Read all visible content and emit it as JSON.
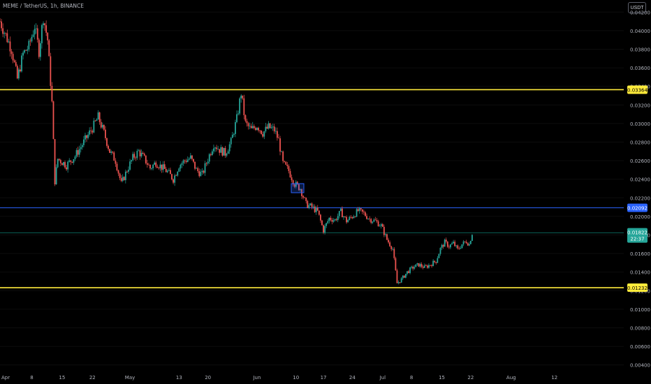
{
  "header": {
    "symbol_line": "MEME / TetherUS, 1h, BINANCE",
    "currency_button": "USDT"
  },
  "colors": {
    "background": "#000000",
    "up_candle": "#26a69a",
    "down_candle": "#ef5350",
    "resistance_line": "#ffeb3b",
    "blue_line": "#2962ff",
    "current_price_line": "#0b6b5f",
    "axis_text": "#b2b5be"
  },
  "chart_data": {
    "type": "candlestick",
    "ylim": [
      0.0033,
      0.0433
    ],
    "y_ticks": [
      "0.04200",
      "0.04000",
      "0.03800",
      "0.03600",
      "0.03400",
      "0.03200",
      "0.03000",
      "0.02800",
      "0.02600",
      "0.02400",
      "0.02200",
      "0.02000",
      "0.01800",
      "0.01600",
      "0.01400",
      "0.01200",
      "0.01000",
      "0.00800",
      "0.00600",
      "0.00400"
    ],
    "x_ticks": [
      "Apr",
      "8",
      "15",
      "22",
      "May",
      "13",
      "20",
      "Jun",
      "10",
      "17",
      "24",
      "Jul",
      "8",
      "15",
      "22",
      "Aug",
      "12"
    ],
    "horizontal_lines": [
      {
        "price": 0.03364,
        "label": "0.03364",
        "color": "#ffeb3b",
        "style": "solid"
      },
      {
        "price": 0.02092,
        "label": "0.02092",
        "color": "#2962ff",
        "style": "solid"
      },
      {
        "price": 0.01232,
        "label": "0.01232",
        "color": "#ffeb3b",
        "style": "solid"
      }
    ],
    "current_price": {
      "price": 0.01822,
      "label": "0.01822",
      "countdown": "22:37"
    },
    "price_path": [
      [
        0.0,
        0.041
      ],
      [
        2.0,
        0.0395
      ],
      [
        4.0,
        0.038
      ],
      [
        6.0,
        0.0348
      ],
      [
        8.0,
        0.0375
      ],
      [
        10.0,
        0.0383
      ],
      [
        12.0,
        0.0405
      ],
      [
        13.5,
        0.0378
      ],
      [
        15.0,
        0.0415
      ],
      [
        16.5,
        0.039
      ],
      [
        18.0,
        0.0322
      ],
      [
        19.0,
        0.0238
      ],
      [
        20.0,
        0.0262
      ],
      [
        23.0,
        0.0255
      ],
      [
        26.0,
        0.0265
      ],
      [
        29.0,
        0.028
      ],
      [
        32.0,
        0.0295
      ],
      [
        34.0,
        0.0307
      ],
      [
        36.0,
        0.029
      ],
      [
        38.0,
        0.027
      ],
      [
        40.0,
        0.026
      ],
      [
        42.0,
        0.0235
      ],
      [
        44.0,
        0.025
      ],
      [
        46.0,
        0.0263
      ],
      [
        48.0,
        0.027
      ],
      [
        50.0,
        0.0262
      ],
      [
        52.0,
        0.0252
      ],
      [
        54.0,
        0.0258
      ],
      [
        56.0,
        0.0253
      ],
      [
        58.0,
        0.0248
      ],
      [
        60.0,
        0.024
      ],
      [
        62.0,
        0.0255
      ],
      [
        64.0,
        0.026
      ],
      [
        66.0,
        0.0263
      ],
      [
        68.0,
        0.025
      ],
      [
        70.0,
        0.0245
      ],
      [
        72.0,
        0.0262
      ],
      [
        74.0,
        0.0278
      ],
      [
        76.0,
        0.0272
      ],
      [
        78.0,
        0.0268
      ],
      [
        80.0,
        0.028
      ],
      [
        82.0,
        0.0305
      ],
      [
        83.5,
        0.0333
      ],
      [
        85.0,
        0.03
      ],
      [
        87.0,
        0.0293
      ],
      [
        89.0,
        0.0298
      ],
      [
        91.0,
        0.029
      ],
      [
        93.0,
        0.0296
      ],
      [
        95.0,
        0.0293
      ],
      [
        96.5,
        0.0282
      ],
      [
        98.0,
        0.0257
      ],
      [
        100.0,
        0.0249
      ],
      [
        102.0,
        0.0235
      ],
      [
        104.0,
        0.023
      ],
      [
        106.0,
        0.0213
      ],
      [
        108.0,
        0.021
      ],
      [
        110.0,
        0.0205
      ],
      [
        112.0,
        0.0185
      ],
      [
        114.0,
        0.0198
      ],
      [
        116.0,
        0.0196
      ],
      [
        118.0,
        0.0205
      ],
      [
        120.0,
        0.0195
      ],
      [
        122.0,
        0.02
      ],
      [
        124.0,
        0.0206
      ],
      [
        126.0,
        0.0203
      ],
      [
        128.0,
        0.0197
      ],
      [
        130.0,
        0.0195
      ],
      [
        132.0,
        0.019
      ],
      [
        134.0,
        0.0175
      ],
      [
        136.0,
        0.0165
      ],
      [
        137.5,
        0.0128
      ],
      [
        139.0,
        0.0132
      ],
      [
        141.0,
        0.014
      ],
      [
        143.0,
        0.0145
      ],
      [
        145.0,
        0.0148
      ],
      [
        147.0,
        0.0145
      ],
      [
        149.0,
        0.0148
      ],
      [
        151.0,
        0.0152
      ],
      [
        152.5,
        0.0165
      ],
      [
        154.0,
        0.0172
      ],
      [
        155.5,
        0.0168
      ],
      [
        157.0,
        0.0171
      ],
      [
        158.5,
        0.0164
      ],
      [
        160.0,
        0.017
      ],
      [
        161.5,
        0.0173
      ],
      [
        162.5,
        0.017
      ],
      [
        163.5,
        0.0182
      ]
    ],
    "x_tick_positions": [
      0,
      11,
      21.5,
      32,
      45,
      62,
      72,
      89,
      102.5,
      112,
      122,
      132.5,
      142.5,
      153,
      163,
      177,
      192
    ],
    "x_range": [
      0,
      216
    ]
  }
}
